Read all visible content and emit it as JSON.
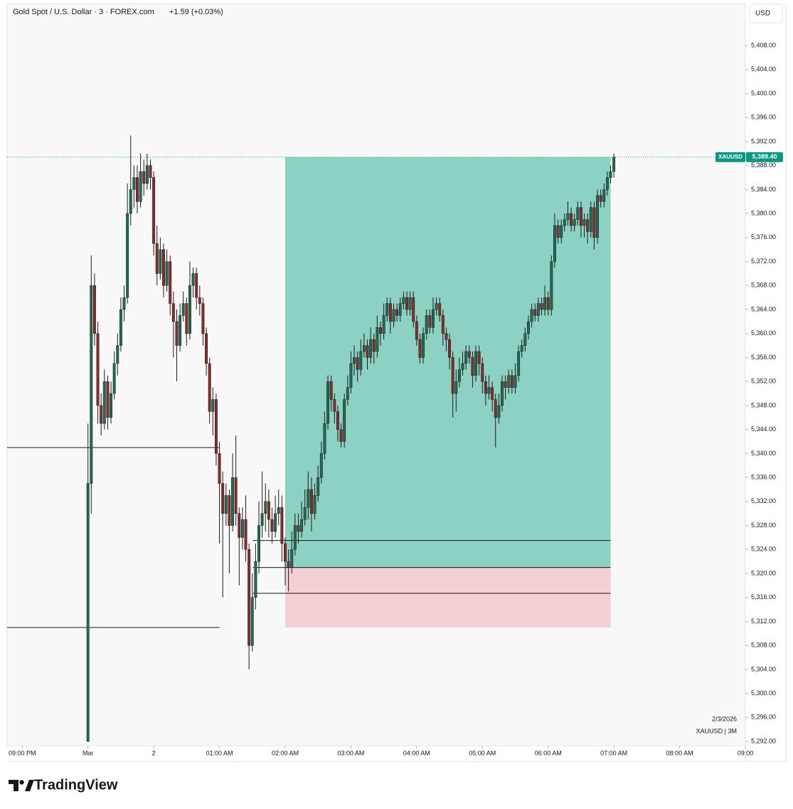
{
  "chart_data": {
    "type": "candlestick",
    "title": "Gold Spot / U.S. Dollar · 3 · FOREX.com",
    "change": "+1.59 (+0.03%)",
    "currency": "USD",
    "date_label": "2/3/2026",
    "symbol_label": "XAUUSD | 3M",
    "up_color": "#1f6b55",
    "down_color": "#8a2a2a",
    "xlim": [
      -0.23,
      11.0
    ],
    "ylim": [
      5291.3,
      5415.0
    ],
    "xticks": [
      {
        "value": 0,
        "label": "09:00 PM"
      },
      {
        "value": 1,
        "label": "Mar"
      },
      {
        "value": 2,
        "label": "2"
      },
      {
        "value": 3,
        "label": "01:00 AM"
      },
      {
        "value": 4,
        "label": "02:00 AM"
      },
      {
        "value": 5,
        "label": "03:00 AM"
      },
      {
        "value": 6,
        "label": "04:00 AM"
      },
      {
        "value": 7,
        "label": "05:00 AM"
      },
      {
        "value": 8,
        "label": "06:00 AM"
      },
      {
        "value": 9,
        "label": "07:00 AM"
      },
      {
        "value": 10,
        "label": "08:00 AM"
      },
      {
        "value": 11,
        "label": "09:00"
      }
    ],
    "yticks": [
      {
        "value": 5292,
        "label": "5,292.00"
      },
      {
        "value": 5296,
        "label": "5,296.00"
      },
      {
        "value": 5300,
        "label": "5,300.00"
      },
      {
        "value": 5304,
        "label": "5,304.00"
      },
      {
        "value": 5308,
        "label": "5,308.00"
      },
      {
        "value": 5312,
        "label": "5,312.00"
      },
      {
        "value": 5316,
        "label": "5,316.00"
      },
      {
        "value": 5320,
        "label": "5,320.00"
      },
      {
        "value": 5324,
        "label": "5,324.00"
      },
      {
        "value": 5328,
        "label": "5,328.00"
      },
      {
        "value": 5332,
        "label": "5,332.00"
      },
      {
        "value": 5336,
        "label": "5,336.00"
      },
      {
        "value": 5340,
        "label": "5,340.00"
      },
      {
        "value": 5344,
        "label": "5,344.00"
      },
      {
        "value": 5348,
        "label": "5,348.00"
      },
      {
        "value": 5352,
        "label": "5,352.00"
      },
      {
        "value": 5356,
        "label": "5,356.00"
      },
      {
        "value": 5360,
        "label": "5,360.00"
      },
      {
        "value": 5364,
        "label": "5,364.00"
      },
      {
        "value": 5368,
        "label": "5,368.00"
      },
      {
        "value": 5372,
        "label": "5,372.00"
      },
      {
        "value": 5376,
        "label": "5,376.00"
      },
      {
        "value": 5380,
        "label": "5,380.00"
      },
      {
        "value": 5384,
        "label": "5,384.00"
      },
      {
        "value": 5388,
        "label": "5,388.00"
      },
      {
        "value": 5392,
        "label": "5,392.00"
      },
      {
        "value": 5396,
        "label": "5,396.00"
      },
      {
        "value": 5400,
        "label": "5,400.00"
      },
      {
        "value": 5404,
        "label": "5,404.00"
      },
      {
        "value": 5408,
        "label": "5,408.00"
      }
    ],
    "last_price": {
      "symbol": "XAUUSD",
      "value": 5389.4,
      "label": "5,389.40"
    },
    "levels": [
      {
        "price": 5341,
        "x": [
          -0.23,
          3.0
        ]
      },
      {
        "price": 5311,
        "x": [
          -0.23,
          3.0
        ]
      },
      {
        "price": 5325.5,
        "x": [
          3.51,
          8.95
        ]
      },
      {
        "price": 5321,
        "x": [
          3.51,
          8.95
        ]
      },
      {
        "price": 5316.7,
        "x": [
          3.51,
          8.95
        ]
      }
    ],
    "position": {
      "x": [
        4.0,
        8.95
      ],
      "entry": 5321,
      "target": 5389.4,
      "stop": 5311
    },
    "x": [
      1,
      1.05,
      1.1,
      1.15,
      1.2,
      1.25,
      1.3,
      1.35,
      1.4,
      1.45,
      1.5,
      1.55,
      1.6,
      1.65,
      1.7,
      1.75,
      1.8,
      1.85,
      1.9,
      1.95,
      2,
      2.05,
      2.1,
      2.15,
      2.2,
      2.25,
      2.3,
      2.35,
      2.4,
      2.45,
      2.5,
      2.55,
      2.6,
      2.65,
      2.7,
      2.75,
      2.8,
      2.85,
      2.9,
      2.95,
      3,
      3.05,
      3.1,
      3.15,
      3.2,
      3.25,
      3.3,
      3.35,
      3.4,
      3.45,
      3.5,
      3.55,
      3.6,
      3.65,
      3.7,
      3.75,
      3.8,
      3.85,
      3.9,
      3.95,
      4,
      4.05,
      4.1,
      4.15,
      4.2,
      4.25,
      4.3,
      4.35,
      4.4,
      4.45,
      4.5,
      4.55,
      4.6,
      4.65,
      4.7,
      4.75,
      4.8,
      4.85,
      4.9,
      4.95,
      5,
      5.05,
      5.1,
      5.15,
      5.2,
      5.25,
      5.3,
      5.35,
      5.4,
      5.45,
      5.5,
      5.55,
      5.6,
      5.65,
      5.7,
      5.75,
      5.8,
      5.85,
      5.9,
      5.95,
      6,
      6.05,
      6.1,
      6.15,
      6.2,
      6.25,
      6.3,
      6.35,
      6.4,
      6.45,
      6.5,
      6.55,
      6.6,
      6.65,
      6.7,
      6.75,
      6.8,
      6.85,
      6.9,
      6.95,
      7,
      7.05,
      7.1,
      7.15,
      7.2,
      7.25,
      7.3,
      7.35,
      7.4,
      7.45,
      7.5,
      7.55,
      7.6,
      7.65,
      7.7,
      7.75,
      7.8,
      7.85,
      7.9,
      7.95,
      8,
      8.05,
      8.1,
      8.15,
      8.2,
      8.25,
      8.3,
      8.35,
      8.4,
      8.45,
      8.5,
      8.55,
      8.6,
      8.65,
      8.7,
      8.75,
      8.8,
      8.85,
      8.9,
      8.95,
      9
    ],
    "ohlc": [
      [
        5292,
        5345,
        5292,
        5335
      ],
      [
        5335,
        5373,
        5330,
        5368
      ],
      [
        5368,
        5370,
        5358,
        5360
      ],
      [
        5360,
        5362,
        5345,
        5348
      ],
      [
        5348,
        5350,
        5343,
        5345
      ],
      [
        5345,
        5354,
        5344,
        5352
      ],
      [
        5352,
        5353,
        5344,
        5346
      ],
      [
        5346,
        5352,
        5345,
        5350
      ],
      [
        5350,
        5357,
        5349,
        5355
      ],
      [
        5355,
        5360,
        5353,
        5358
      ],
      [
        5358,
        5366,
        5357,
        5364
      ],
      [
        5364,
        5368,
        5362,
        5366
      ],
      [
        5366,
        5385,
        5365,
        5380
      ],
      [
        5380,
        5393,
        5378,
        5384
      ],
      [
        5384,
        5388,
        5381,
        5386
      ],
      [
        5386,
        5388,
        5380,
        5382
      ],
      [
        5382,
        5390,
        5381,
        5387
      ],
      [
        5387,
        5389,
        5383,
        5385
      ],
      [
        5385,
        5390,
        5384,
        5388
      ],
      [
        5388,
        5389,
        5384,
        5386
      ],
      [
        5386,
        5387,
        5373,
        5375
      ],
      [
        5375,
        5378,
        5368,
        5370
      ],
      [
        5370,
        5376,
        5369,
        5374
      ],
      [
        5374,
        5375,
        5366,
        5368
      ],
      [
        5368,
        5374,
        5367,
        5372
      ],
      [
        5372,
        5373,
        5363,
        5365
      ],
      [
        5365,
        5367,
        5356,
        5362
      ],
      [
        5362,
        5364,
        5352,
        5358
      ],
      [
        5358,
        5365,
        5357,
        5363
      ],
      [
        5363,
        5367,
        5362,
        5365
      ],
      [
        5365,
        5366,
        5358,
        5360
      ],
      [
        5360,
        5372,
        5359,
        5368
      ],
      [
        5368,
        5371,
        5366,
        5370
      ],
      [
        5370,
        5371,
        5364,
        5366
      ],
      [
        5366,
        5368,
        5363,
        5365
      ],
      [
        5365,
        5366,
        5358,
        5360
      ],
      [
        5360,
        5361,
        5353,
        5355
      ],
      [
        5355,
        5356,
        5345,
        5347
      ],
      [
        5347,
        5351,
        5343,
        5349
      ],
      [
        5349,
        5350,
        5338,
        5340
      ],
      [
        5340,
        5342,
        5325,
        5335
      ],
      [
        5335,
        5337,
        5316,
        5330
      ],
      [
        5330,
        5335,
        5328,
        5333
      ],
      [
        5333,
        5334,
        5320,
        5328
      ],
      [
        5328,
        5340,
        5327,
        5336
      ],
      [
        5336,
        5343,
        5328,
        5330
      ],
      [
        5330,
        5331,
        5318,
        5326
      ],
      [
        5326,
        5331,
        5324,
        5329
      ],
      [
        5329,
        5333,
        5322,
        5324
      ],
      [
        5324,
        5325,
        5304,
        5308
      ],
      [
        5308,
        5320,
        5307,
        5316
      ],
      [
        5316,
        5325,
        5314,
        5322
      ],
      [
        5322,
        5332,
        5320,
        5328
      ],
      [
        5328,
        5337,
        5326,
        5330
      ],
      [
        5330,
        5335,
        5327,
        5332
      ],
      [
        5332,
        5334,
        5326,
        5329
      ],
      [
        5329,
        5331,
        5325,
        5327
      ],
      [
        5327,
        5333,
        5326,
        5330
      ],
      [
        5330,
        5334,
        5328,
        5331
      ],
      [
        5331,
        5333,
        5322,
        5325
      ],
      [
        5325,
        5326,
        5318,
        5322
      ],
      [
        5322,
        5324,
        5317,
        5321
      ],
      [
        5321,
        5327,
        5320,
        5324
      ],
      [
        5324,
        5330,
        5323,
        5328
      ],
      [
        5328,
        5330,
        5325,
        5327
      ],
      [
        5327,
        5332,
        5326,
        5329
      ],
      [
        5329,
        5334,
        5328,
        5331
      ],
      [
        5331,
        5337,
        5329,
        5334
      ],
      [
        5334,
        5336,
        5327,
        5330
      ],
      [
        5330,
        5335,
        5329,
        5333
      ],
      [
        5333,
        5338,
        5332,
        5336
      ],
      [
        5336,
        5342,
        5335,
        5340
      ],
      [
        5340,
        5347,
        5339,
        5345
      ],
      [
        5345,
        5353,
        5344,
        5352
      ],
      [
        5352,
        5353,
        5347,
        5349
      ],
      [
        5349,
        5350,
        5345,
        5347
      ],
      [
        5347,
        5348,
        5342,
        5344
      ],
      [
        5344,
        5345,
        5341,
        5342
      ],
      [
        5342,
        5350,
        5341,
        5349
      ],
      [
        5349,
        5353,
        5348,
        5351
      ],
      [
        5351,
        5357,
        5350,
        5355
      ],
      [
        5355,
        5358,
        5353,
        5356
      ],
      [
        5356,
        5357,
        5352,
        5354
      ],
      [
        5354,
        5359,
        5353,
        5357
      ],
      [
        5357,
        5360,
        5356,
        5358
      ],
      [
        5358,
        5359,
        5354,
        5356
      ],
      [
        5356,
        5361,
        5355,
        5359
      ],
      [
        5359,
        5360,
        5355,
        5357
      ],
      [
        5357,
        5363,
        5356,
        5361
      ],
      [
        5361,
        5362,
        5358,
        5360
      ],
      [
        5360,
        5365,
        5359,
        5363
      ],
      [
        5363,
        5366,
        5362,
        5365
      ],
      [
        5365,
        5366,
        5360,
        5362
      ],
      [
        5362,
        5365,
        5361,
        5364
      ],
      [
        5364,
        5365,
        5362,
        5363
      ],
      [
        5363,
        5366,
        5362,
        5365
      ],
      [
        5365,
        5367,
        5364,
        5366
      ],
      [
        5366,
        5367,
        5363,
        5364
      ],
      [
        5364,
        5367,
        5363,
        5366
      ],
      [
        5366,
        5367,
        5361,
        5362
      ],
      [
        5362,
        5363,
        5358,
        5359
      ],
      [
        5359,
        5360,
        5355,
        5356
      ],
      [
        5356,
        5361,
        5355,
        5360
      ],
      [
        5360,
        5364,
        5359,
        5363
      ],
      [
        5363,
        5364,
        5360,
        5361
      ],
      [
        5361,
        5366,
        5360,
        5364
      ],
      [
        5364,
        5366,
        5363,
        5365
      ],
      [
        5365,
        5366,
        5362,
        5363
      ],
      [
        5363,
        5364,
        5358,
        5360
      ],
      [
        5360,
        5361,
        5357,
        5359
      ],
      [
        5359,
        5360,
        5354,
        5356
      ],
      [
        5356,
        5357,
        5346,
        5350
      ],
      [
        5350,
        5354,
        5347,
        5352
      ],
      [
        5352,
        5356,
        5351,
        5354
      ],
      [
        5354,
        5357,
        5353,
        5355
      ],
      [
        5355,
        5358,
        5354,
        5357
      ],
      [
        5357,
        5358,
        5355,
        5356
      ],
      [
        5356,
        5357,
        5351,
        5353
      ],
      [
        5353,
        5358,
        5352,
        5357
      ],
      [
        5357,
        5358,
        5353,
        5355
      ],
      [
        5355,
        5356,
        5350,
        5352
      ],
      [
        5352,
        5353,
        5348,
        5350
      ],
      [
        5350,
        5353,
        5349,
        5351
      ],
      [
        5351,
        5352,
        5347,
        5349
      ],
      [
        5349,
        5350,
        5341,
        5346
      ],
      [
        5346,
        5350,
        5345,
        5348
      ],
      [
        5348,
        5353,
        5347,
        5352
      ],
      [
        5352,
        5353,
        5349,
        5351
      ],
      [
        5351,
        5354,
        5350,
        5353
      ],
      [
        5353,
        5354,
        5350,
        5351
      ],
      [
        5351,
        5355,
        5350,
        5353
      ],
      [
        5353,
        5358,
        5352,
        5357
      ],
      [
        5357,
        5359,
        5356,
        5358
      ],
      [
        5358,
        5361,
        5357,
        5360
      ],
      [
        5360,
        5363,
        5359,
        5362
      ],
      [
        5362,
        5365,
        5361,
        5364
      ],
      [
        5364,
        5365,
        5362,
        5363
      ],
      [
        5363,
        5366,
        5362,
        5365
      ],
      [
        5365,
        5366,
        5363,
        5364
      ],
      [
        5364,
        5368,
        5363,
        5366
      ],
      [
        5366,
        5367,
        5363,
        5364
      ],
      [
        5364,
        5373,
        5363,
        5372
      ],
      [
        5372,
        5380,
        5371,
        5378
      ],
      [
        5378,
        5379,
        5375,
        5376
      ],
      [
        5376,
        5379,
        5375,
        5378
      ],
      [
        5378,
        5380,
        5377,
        5379
      ],
      [
        5379,
        5382,
        5378,
        5380
      ],
      [
        5380,
        5381,
        5377,
        5378
      ],
      [
        5378,
        5380,
        5377,
        5379
      ],
      [
        5379,
        5382,
        5378,
        5381
      ],
      [
        5381,
        5382,
        5376,
        5378
      ],
      [
        5378,
        5380,
        5376,
        5379
      ],
      [
        5379,
        5380,
        5375,
        5377
      ],
      [
        5377,
        5382,
        5376,
        5381
      ],
      [
        5381,
        5382,
        5374,
        5376
      ],
      [
        5376,
        5384,
        5375,
        5383
      ],
      [
        5383,
        5384,
        5381,
        5382
      ],
      [
        5382,
        5385,
        5381,
        5384
      ],
      [
        5384,
        5387,
        5383,
        5386
      ],
      [
        5386,
        5388,
        5385,
        5387
      ],
      [
        5387,
        5390,
        5386,
        5389.4
      ]
    ]
  },
  "brand": "TradingView"
}
